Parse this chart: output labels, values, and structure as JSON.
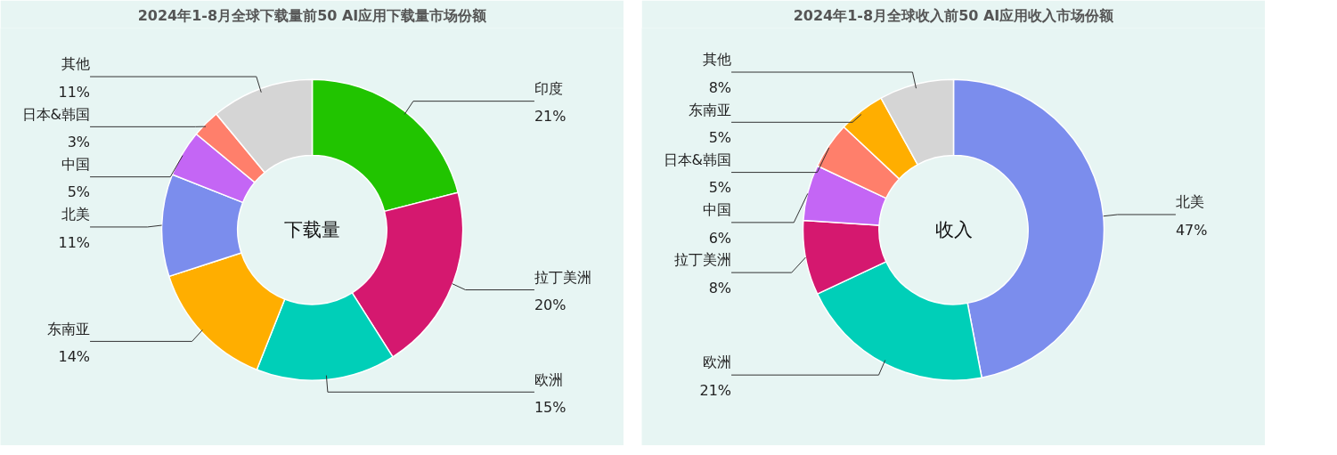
{
  "chart_data": [
    {
      "type": "donut",
      "title": "2024年1-8月全球下载量前50 AI应用下载量市场份额",
      "categories": [
        "印度",
        "拉丁美洲",
        "欧洲",
        "东南亚",
        "北美",
        "中国",
        "日本&韩国",
        "其他"
      ],
      "values": [
        21,
        20,
        15,
        14,
        11,
        5,
        3,
        11
      ],
      "value_labels": [
        "21%",
        "20%",
        "15%",
        "14%",
        "11%",
        "5%",
        "3%",
        "11%"
      ],
      "colors": [
        "#21c400",
        "#d5186f",
        "#00cfb8",
        "#ffae00",
        "#7b8ded",
        "#c466f5",
        "#ff7f6b",
        "#d5d5d5"
      ],
      "annotations": [
        "下载量"
      ]
    },
    {
      "type": "donut",
      "title": "2024年1-8月全球收入前50 AI应用收入市场份额",
      "categories": [
        "北美",
        "欧洲",
        "拉丁美洲",
        "中国",
        "日本&韩国",
        "东南亚",
        "其他"
      ],
      "values": [
        47,
        21,
        8,
        6,
        5,
        5,
        8
      ],
      "value_labels": [
        "47%",
        "21%",
        "8%",
        "6%",
        "5%",
        "5%",
        "8%"
      ],
      "colors": [
        "#7b8ded",
        "#00cfb8",
        "#d5186f",
        "#c466f5",
        "#ff7f6b",
        "#ffae00",
        "#d5d5d5"
      ],
      "annotations": [
        "收入"
      ]
    }
  ]
}
